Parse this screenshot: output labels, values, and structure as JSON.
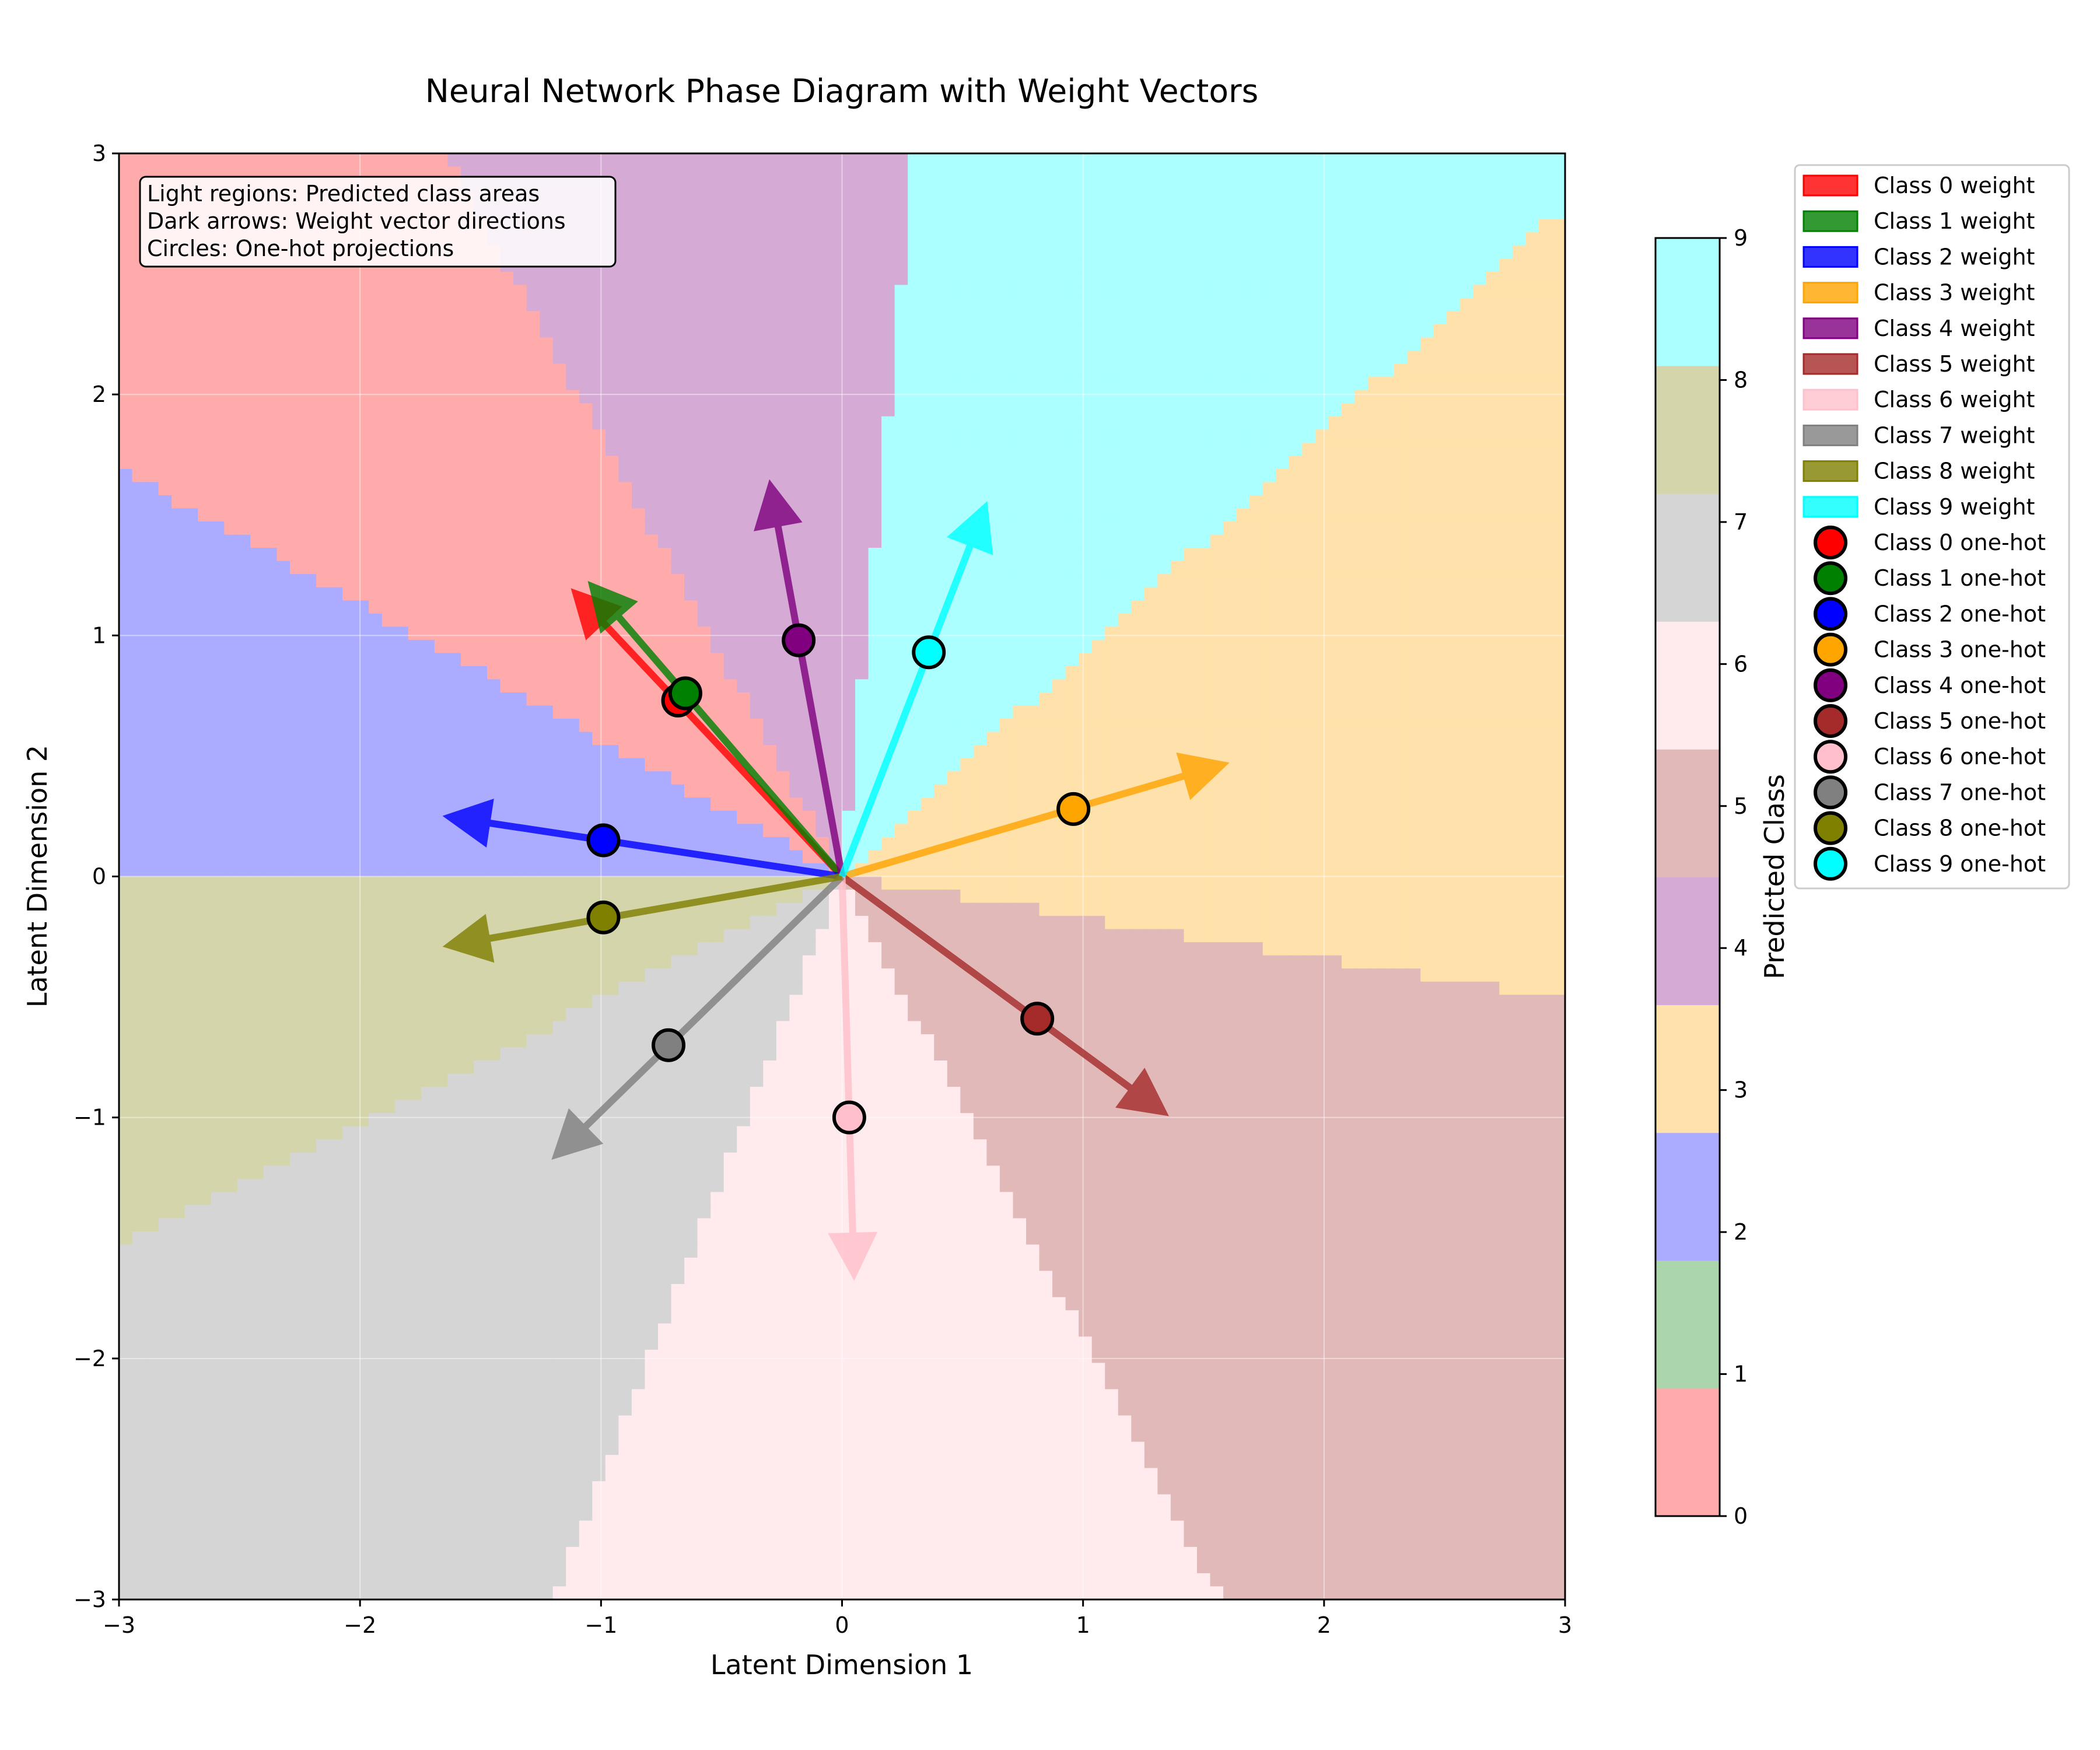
{
  "chart_data": {
    "type": "scatter",
    "title": "Neural Network Phase Diagram with Weight Vectors",
    "xlabel": "Latent Dimension 1",
    "ylabel": "Latent Dimension 2",
    "xlim": [
      -3,
      3
    ],
    "ylim": [
      -3,
      3
    ],
    "xticks": [
      -3,
      -2,
      -1,
      0,
      1,
      2,
      3
    ],
    "yticks": [
      -3,
      -2,
      -1,
      0,
      1,
      2,
      3
    ],
    "xtick_labels": [
      "−3",
      "−2",
      "−1",
      "0",
      "1",
      "2",
      "3"
    ],
    "ytick_labels": [
      "−3",
      "−2",
      "−1",
      "0",
      "1",
      "2",
      "3"
    ],
    "grid": true,
    "annotation_lines": [
      "Light regions: Predicted class areas",
      "Dark arrows: Weight vector directions",
      "Circles: One-hot projections"
    ],
    "classes": [
      {
        "id": 0,
        "color": "#ff0000",
        "weight_tip": [
          -1.12,
          1.19
        ],
        "onehot": [
          -0.68,
          0.73
        ],
        "weight_label": "Class 0 weight",
        "onehot_label": "Class 0 one-hot"
      },
      {
        "id": 1,
        "color": "#008000",
        "weight_tip": [
          -1.05,
          1.22
        ],
        "onehot": [
          -0.65,
          0.76
        ],
        "weight_label": "Class 1 weight",
        "onehot_label": "Class 1 one-hot"
      },
      {
        "id": 2,
        "color": "#0000ff",
        "weight_tip": [
          -1.65,
          0.25
        ],
        "onehot": [
          -0.99,
          0.15
        ],
        "weight_label": "Class 2 weight",
        "onehot_label": "Class 2 one-hot"
      },
      {
        "id": 3,
        "color": "#ffa500",
        "weight_tip": [
          1.6,
          0.47
        ],
        "onehot": [
          0.96,
          0.28
        ],
        "weight_label": "Class 3 weight",
        "onehot_label": "Class 3 one-hot"
      },
      {
        "id": 4,
        "color": "#800080",
        "weight_tip": [
          -0.3,
          1.64
        ],
        "onehot": [
          -0.18,
          0.98
        ],
        "weight_label": "Class 4 weight",
        "onehot_label": "Class 4 one-hot"
      },
      {
        "id": 5,
        "color": "#a52a2a",
        "weight_tip": [
          1.35,
          -0.99
        ],
        "onehot": [
          0.81,
          -0.59
        ],
        "weight_label": "Class 5 weight",
        "onehot_label": "Class 5 one-hot"
      },
      {
        "id": 6,
        "color": "#ffc0cb",
        "weight_tip": [
          0.05,
          -1.67
        ],
        "onehot": [
          0.03,
          -1.0
        ],
        "weight_label": "Class 6 weight",
        "onehot_label": "Class 6 one-hot"
      },
      {
        "id": 7,
        "color": "#808080",
        "weight_tip": [
          -1.2,
          -1.17
        ],
        "onehot": [
          -0.72,
          -0.7
        ],
        "weight_label": "Class 7 weight",
        "onehot_label": "Class 7 one-hot"
      },
      {
        "id": 8,
        "color": "#808000",
        "weight_tip": [
          -1.65,
          -0.29
        ],
        "onehot": [
          -0.99,
          -0.17
        ],
        "weight_label": "Class 8 weight",
        "onehot_label": "Class 8 one-hot"
      },
      {
        "id": 9,
        "color": "#00ffff",
        "weight_tip": [
          0.6,
          1.55
        ],
        "onehot": [
          0.36,
          0.93
        ],
        "weight_label": "Class 9 weight",
        "onehot_label": "Class 9 one-hot"
      }
    ],
    "regions": {
      "type": "heatmap",
      "description_values": "predicted class = argmax over weight vectors of projection",
      "alpha": 0.33
    },
    "colorbar": {
      "label": "Predicted Class",
      "range": [
        0,
        9
      ],
      "ticks": [
        0,
        1,
        2,
        3,
        4,
        5,
        6,
        7,
        8,
        9
      ]
    }
  }
}
